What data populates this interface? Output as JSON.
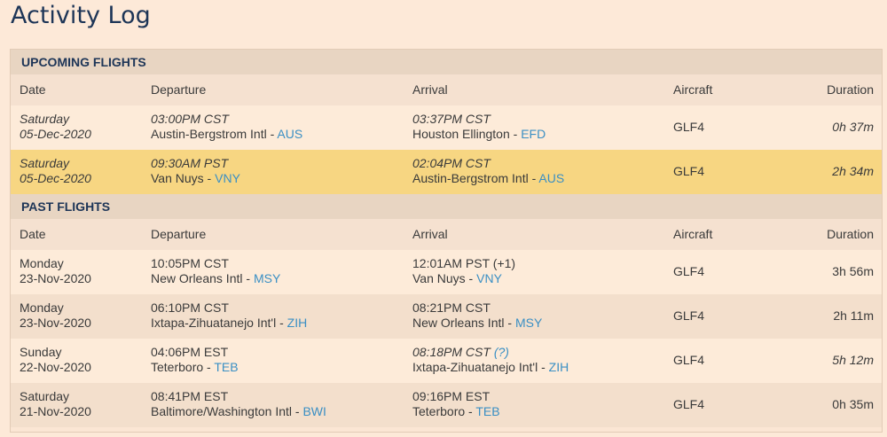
{
  "page_title": "Activity Log",
  "columns": [
    "Date",
    "Departure",
    "Arrival",
    "Aircraft",
    "Duration"
  ],
  "colors": {
    "highlight": "#f7d682",
    "link": "#3a8fc4",
    "heading": "#1d3557"
  },
  "sections": [
    {
      "title": "UPCOMING FLIGHTS",
      "rows": [
        {
          "day": "Saturday",
          "date": "05-Dec-2020",
          "date_italic": true,
          "dep_time": "03:00PM CST",
          "dep_italic": true,
          "dep_airport": "Austin-Bergstrom Intl",
          "dep_code": "AUS",
          "arr_time": "03:37PM CST",
          "arr_italic": true,
          "arr_note": "",
          "arr_airport": "Houston Ellington",
          "arr_code": "EFD",
          "aircraft": "GLF4",
          "duration": "0h 37m",
          "dur_italic": true,
          "highlighted": false
        },
        {
          "day": "Saturday",
          "date": "05-Dec-2020",
          "date_italic": true,
          "dep_time": "09:30AM PST",
          "dep_italic": true,
          "dep_airport": "Van Nuys",
          "dep_code": "VNY",
          "arr_time": "02:04PM CST",
          "arr_italic": true,
          "arr_note": "",
          "arr_airport": "Austin-Bergstrom Intl",
          "arr_code": "AUS",
          "aircraft": "GLF4",
          "duration": "2h 34m",
          "dur_italic": true,
          "highlighted": true
        }
      ]
    },
    {
      "title": "PAST FLIGHTS",
      "rows": [
        {
          "day": "Monday",
          "date": "23-Nov-2020",
          "date_italic": false,
          "dep_time": "10:05PM CST",
          "dep_italic": false,
          "dep_airport": "New Orleans Intl",
          "dep_code": "MSY",
          "arr_time": "12:01AM PST (+1)",
          "arr_italic": false,
          "arr_note": "",
          "arr_airport": "Van Nuys",
          "arr_code": "VNY",
          "aircraft": "GLF4",
          "duration": "3h 56m",
          "dur_italic": false,
          "highlighted": false
        },
        {
          "day": "Monday",
          "date": "23-Nov-2020",
          "date_italic": false,
          "dep_time": "06:10PM CST",
          "dep_italic": false,
          "dep_airport": "Ixtapa-Zihuatanejo Int'l",
          "dep_code": "ZIH",
          "arr_time": "08:21PM CST",
          "arr_italic": false,
          "arr_note": "",
          "arr_airport": "New Orleans Intl",
          "arr_code": "MSY",
          "aircraft": "GLF4",
          "duration": "2h 11m",
          "dur_italic": false,
          "highlighted": false
        },
        {
          "day": "Sunday",
          "date": "22-Nov-2020",
          "date_italic": false,
          "dep_time": "04:06PM EST",
          "dep_italic": false,
          "dep_airport": "Teterboro",
          "dep_code": "TEB",
          "arr_time": "08:18PM CST",
          "arr_italic": true,
          "arr_note": "(?)",
          "arr_airport": "Ixtapa-Zihuatanejo Int'l",
          "arr_code": "ZIH",
          "aircraft": "GLF4",
          "duration": "5h 12m",
          "dur_italic": true,
          "highlighted": false
        },
        {
          "day": "Saturday",
          "date": "21-Nov-2020",
          "date_italic": false,
          "dep_time": "08:41PM EST",
          "dep_italic": false,
          "dep_airport": "Baltimore/Washington Intl",
          "dep_code": "BWI",
          "arr_time": "09:16PM EST",
          "arr_italic": false,
          "arr_note": "",
          "arr_airport": "Teterboro",
          "arr_code": "TEB",
          "aircraft": "GLF4",
          "duration": "0h 35m",
          "dur_italic": false,
          "highlighted": false
        }
      ]
    }
  ]
}
